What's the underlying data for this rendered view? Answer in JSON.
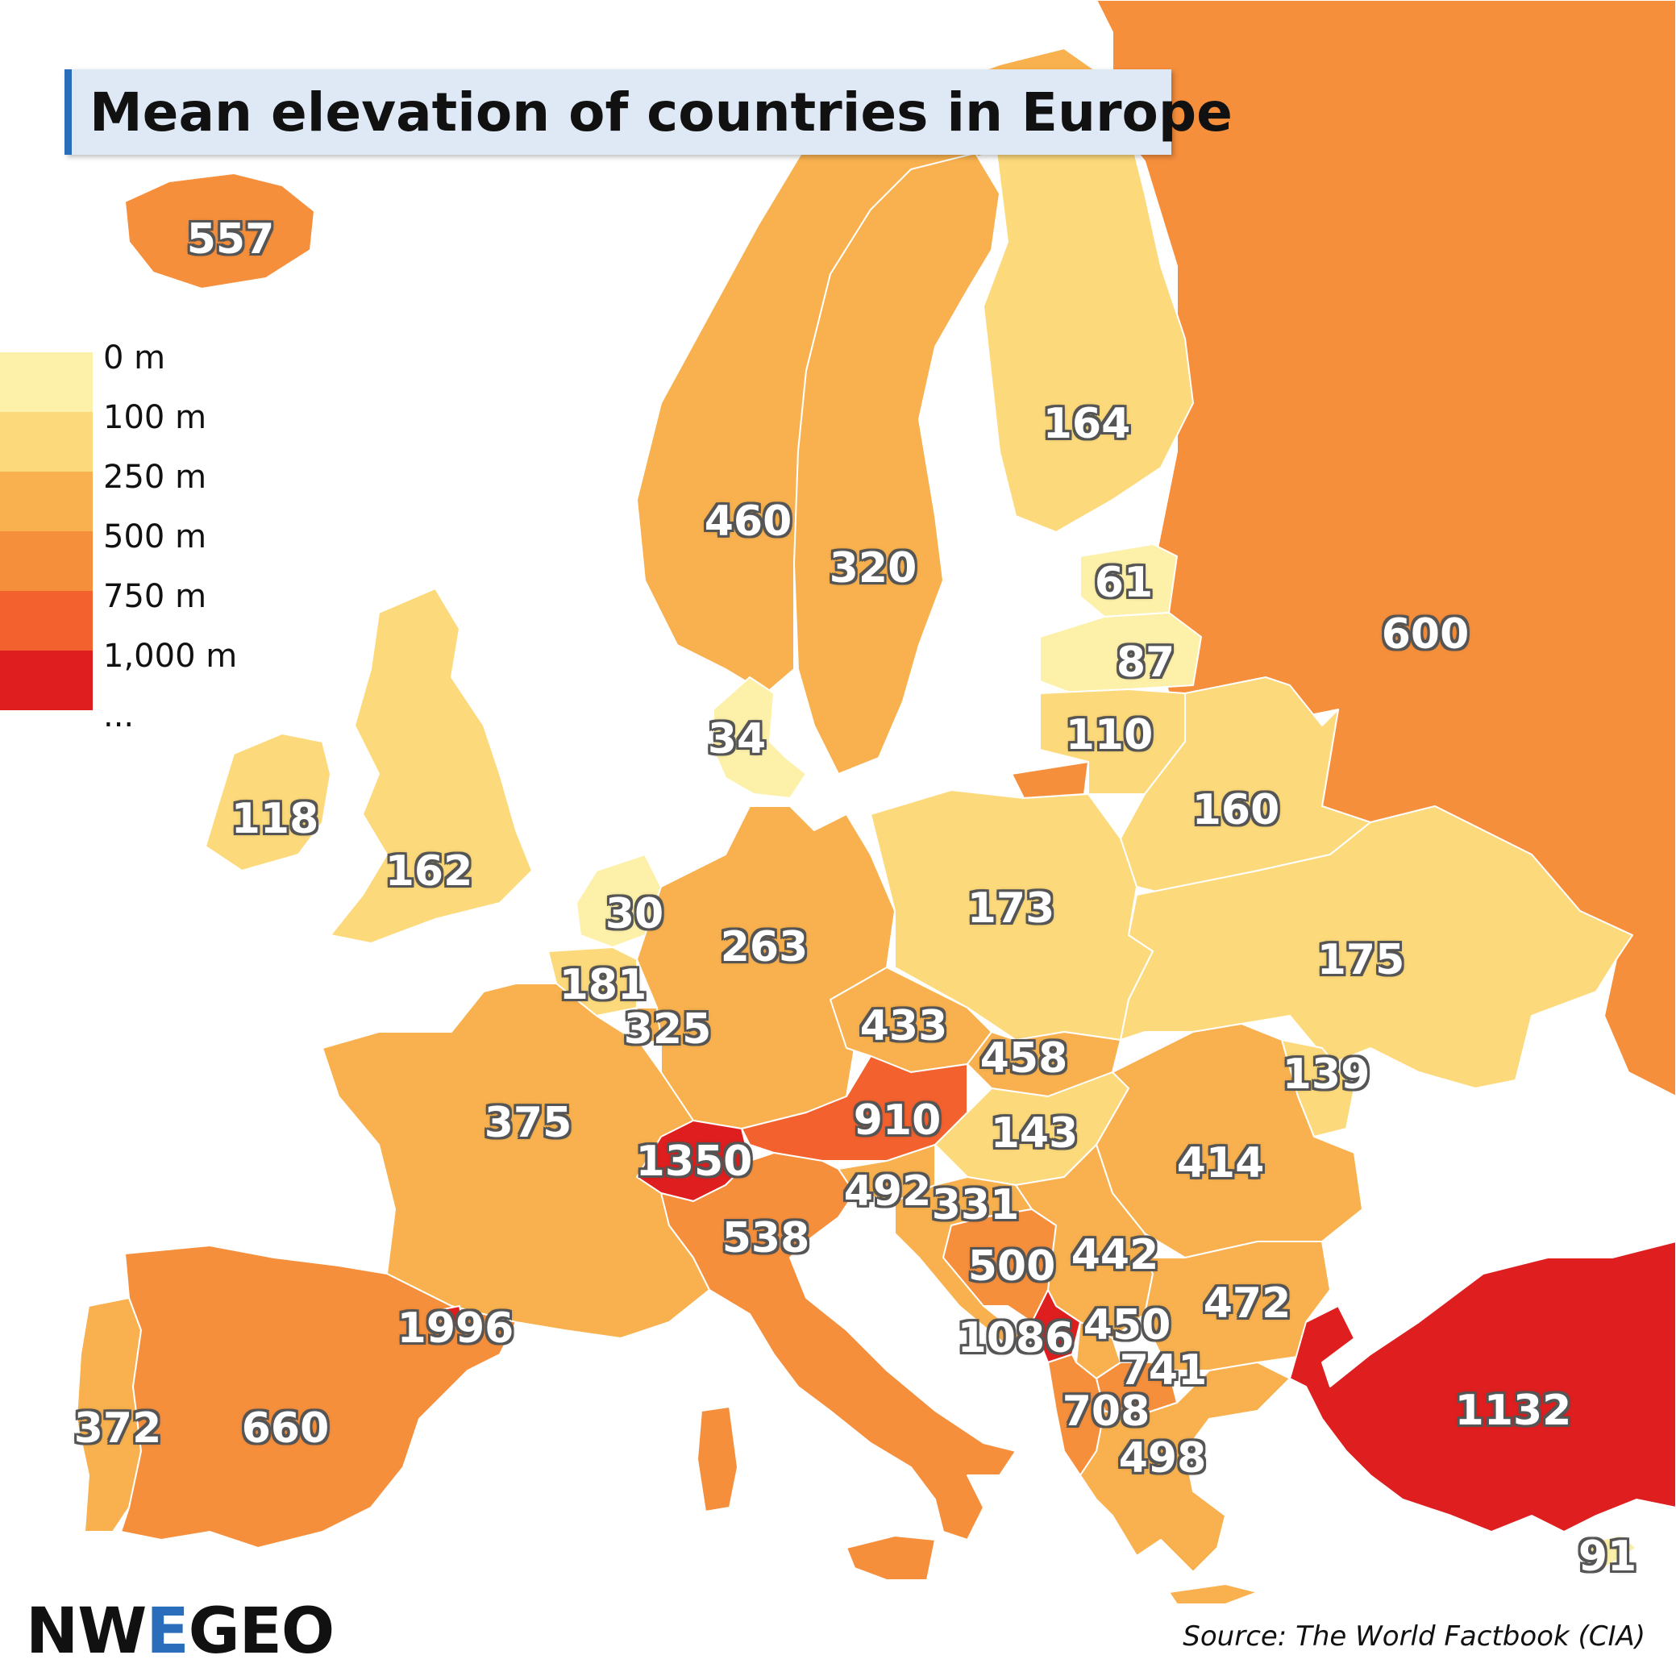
{
  "title": "Mean elevation of countries in Europe",
  "legend": {
    "items": [
      {
        "label": "0 m",
        "color": "#fdf0a8"
      },
      {
        "label": "100 m",
        "color": "#fcd97a"
      },
      {
        "label": "250 m",
        "color": "#f8b14e"
      },
      {
        "label": "500 m",
        "color": "#f68f3c"
      },
      {
        "label": "750 m",
        "color": "#f3612e"
      },
      {
        "label": "1,000 m",
        "color": "#df1f1f"
      },
      {
        "label": "..."
      }
    ]
  },
  "regions": [
    {
      "name": "russia",
      "value": "600",
      "color": "#f68f3c"
    },
    {
      "name": "iceland",
      "value": "557",
      "color": "#f68f3c"
    },
    {
      "name": "norway",
      "value": "460",
      "color": "#f8b14e"
    },
    {
      "name": "sweden",
      "value": "320",
      "color": "#f8b14e"
    },
    {
      "name": "finland",
      "value": "164",
      "color": "#fcd97a"
    },
    {
      "name": "estonia",
      "value": "61",
      "color": "#fdf0a8"
    },
    {
      "name": "latvia",
      "value": "87",
      "color": "#fdf0a8"
    },
    {
      "name": "lithuania",
      "value": "110",
      "color": "#fcd97a"
    },
    {
      "name": "denmark",
      "value": "34",
      "color": "#fdf0a8"
    },
    {
      "name": "ireland",
      "value": "118",
      "color": "#fcd97a"
    },
    {
      "name": "united-kingdom",
      "value": "162",
      "color": "#fcd97a"
    },
    {
      "name": "belarus",
      "value": "160",
      "color": "#fcd97a"
    },
    {
      "name": "netherlands",
      "value": "30",
      "color": "#fdf0a8"
    },
    {
      "name": "germany",
      "value": "263",
      "color": "#f8b14e"
    },
    {
      "name": "poland",
      "value": "173",
      "color": "#fcd97a"
    },
    {
      "name": "ukraine",
      "value": "175",
      "color": "#fcd97a"
    },
    {
      "name": "belgium",
      "value": "181",
      "color": "#fcd97a"
    },
    {
      "name": "luxembourg",
      "value": "325",
      "color": "#f8b14e"
    },
    {
      "name": "czechia",
      "value": "433",
      "color": "#f8b14e"
    },
    {
      "name": "slovakia",
      "value": "458",
      "color": "#f8b14e"
    },
    {
      "name": "moldova",
      "value": "139",
      "color": "#fcd97a"
    },
    {
      "name": "france",
      "value": "375",
      "color": "#f8b14e"
    },
    {
      "name": "austria",
      "value": "910",
      "color": "#f3612e"
    },
    {
      "name": "hungary",
      "value": "143",
      "color": "#fcd97a"
    },
    {
      "name": "romania",
      "value": "414",
      "color": "#f8b14e"
    },
    {
      "name": "switzerland",
      "value": "1350",
      "color": "#df1f1f"
    },
    {
      "name": "slovenia",
      "value": "492",
      "color": "#f8b14e"
    },
    {
      "name": "croatia",
      "value": "331",
      "color": "#f8b14e"
    },
    {
      "name": "italy",
      "value": "538",
      "color": "#f68f3c"
    },
    {
      "name": "bosnia",
      "value": "500",
      "color": "#f68f3c"
    },
    {
      "name": "serbia",
      "value": "442",
      "color": "#f8b14e"
    },
    {
      "name": "bulgaria",
      "value": "472",
      "color": "#f8b14e"
    },
    {
      "name": "andorra",
      "value": "1996",
      "color": "#df1f1f"
    },
    {
      "name": "montenegro",
      "value": "1086",
      "color": "#df1f1f"
    },
    {
      "name": "kosovo",
      "value": "450",
      "color": "#f8b14e"
    },
    {
      "name": "north-macedonia",
      "value": "741",
      "color": "#f68f3c"
    },
    {
      "name": "albania",
      "value": "708",
      "color": "#f68f3c"
    },
    {
      "name": "greece",
      "value": "498",
      "color": "#f8b14e"
    },
    {
      "name": "turkey",
      "value": "1132",
      "color": "#df1f1f"
    },
    {
      "name": "portugal",
      "value": "372",
      "color": "#f8b14e"
    },
    {
      "name": "spain",
      "value": "660",
      "color": "#f68f3c"
    },
    {
      "name": "cyprus",
      "value": "91",
      "color": "#fdf0a8"
    }
  ],
  "brand": {
    "prefix": "NW",
    "accent": "E",
    "suffix": "GEO"
  },
  "source": "Source: The World Factbook (CIA)"
}
